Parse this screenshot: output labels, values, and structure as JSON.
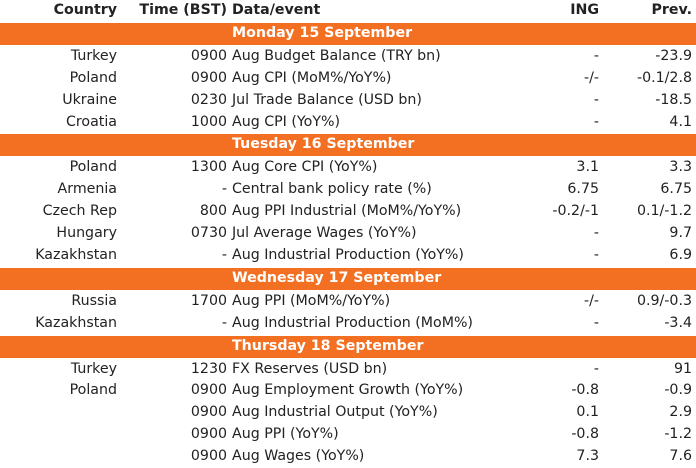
{
  "headers": {
    "country": "Country",
    "time": "Time (BST)",
    "event": "Data/event",
    "ing": "ING",
    "prev": "Prev."
  },
  "days": [
    {
      "label": "Monday 15 September",
      "rows": [
        {
          "country": "Turkey",
          "time": "0900",
          "event": "Aug Budget Balance (TRY bn)",
          "ing": "-",
          "prev": "-23.9"
        },
        {
          "country": "Poland",
          "time": "0900",
          "event": "Aug CPI (MoM%/YoY%)",
          "ing": "-/-",
          "prev": "-0.1/2.8"
        },
        {
          "country": "Ukraine",
          "time": "0230",
          "event": "Jul Trade Balance (USD bn)",
          "ing": "-",
          "prev": "-18.5"
        },
        {
          "country": "Croatia",
          "time": "1000",
          "event": "Aug CPI (YoY%)",
          "ing": "-",
          "prev": "4.1"
        }
      ]
    },
    {
      "label": "Tuesday 16 September",
      "rows": [
        {
          "country": "Poland",
          "time": "1300",
          "event": "Aug Core CPI (YoY%)",
          "ing": "3.1",
          "prev": "3.3"
        },
        {
          "country": "Armenia",
          "time": "-",
          "event": "Central bank policy rate (%)",
          "ing": "6.75",
          "prev": "6.75"
        },
        {
          "country": "Czech Rep",
          "time": "800",
          "event": "Aug PPI Industrial (MoM%/YoY%)",
          "ing": "-0.2/-1",
          "prev": "0.1/-1.2"
        },
        {
          "country": "Hungary",
          "time": "0730",
          "event": "Jul Average Wages (YoY%)",
          "ing": "-",
          "prev": "9.7"
        },
        {
          "country": "Kazakhstan",
          "time": "-",
          "event": "Aug Industrial Production (YoY%)",
          "ing": "-",
          "prev": "6.9"
        }
      ]
    },
    {
      "label": "Wednesday 17 September",
      "rows": [
        {
          "country": "Russia",
          "time": "1700",
          "event": "Aug PPI (MoM%/YoY%)",
          "ing": "-/-",
          "prev": "0.9/-0.3"
        },
        {
          "country": "Kazakhstan",
          "time": "-",
          "event": "Aug Industrial Production (MoM%)",
          "ing": "-",
          "prev": "-3.4"
        }
      ]
    },
    {
      "label": "Thursday 18 September",
      "rows": [
        {
          "country": "Turkey",
          "time": "1230",
          "event": "FX Reserves (USD bn)",
          "ing": "-",
          "prev": "91"
        },
        {
          "country": "Poland",
          "time": "0900",
          "event": "Aug Employment Growth (YoY%)",
          "ing": "-0.8",
          "prev": "-0.9"
        },
        {
          "country": "",
          "time": "0900",
          "event": "Aug Industrial Output (YoY%)",
          "ing": "0.1",
          "prev": "2.9"
        },
        {
          "country": "",
          "time": "0900",
          "event": "Aug PPI (YoY%)",
          "ing": "-0.8",
          "prev": "-1.2"
        },
        {
          "country": "",
          "time": "0900",
          "event": "Aug Wages (YoY%)",
          "ing": "7.3",
          "prev": "7.6"
        }
      ]
    }
  ]
}
